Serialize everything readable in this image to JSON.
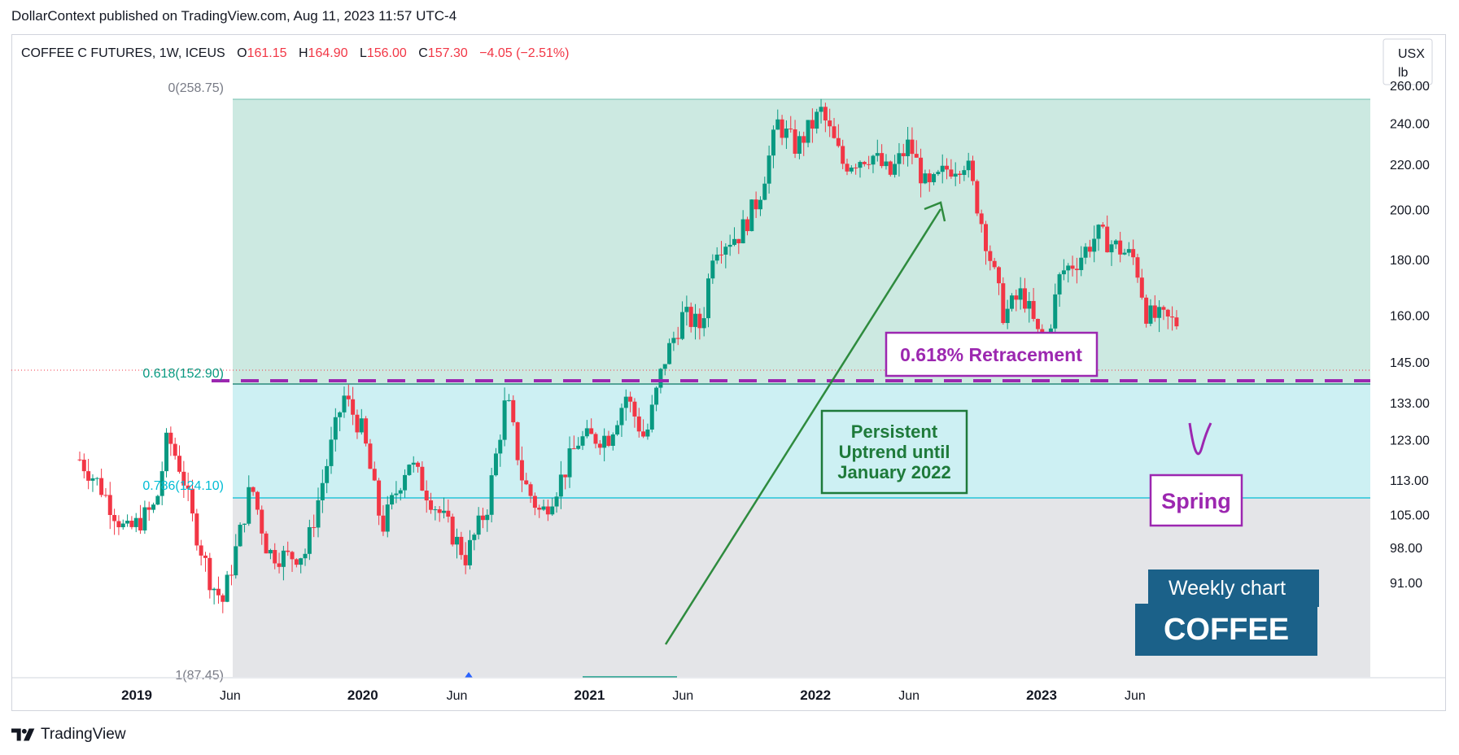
{
  "header": {
    "publisher": "DollarContext published on TradingView.com, Aug 11, 2023 11:57 UTC-4"
  },
  "legend": {
    "symbol": "COFFEE C FUTURES, 1W, ICEUS",
    "open_label": "O",
    "open": "161.15",
    "high_label": "H",
    "high": "164.90",
    "low_label": "L",
    "low": "156.00",
    "close_label": "C",
    "close": "157.30",
    "change": "−4.05 (−2.51%)"
  },
  "unit_box": {
    "currency": "USX",
    "unit": "lb"
  },
  "fib_labels": {
    "level0": "0(258.75)",
    "level618": "0.618(152.90)",
    "level786": "0.786(124.10)",
    "level1": "1(87.45)"
  },
  "annotations": {
    "retracement": "0.618% Retracement",
    "uptrend_line1": "Persistent",
    "uptrend_line2": "Uptrend until",
    "uptrend_line3": "January 2022",
    "spring": "Spring"
  },
  "badge": {
    "line1": "Weekly chart",
    "line2": "COFFEE"
  },
  "footer": {
    "brand": "TradingView"
  },
  "colors": {
    "up": "#089981",
    "down": "#f23645",
    "zone_top": "#cce9e1",
    "zone_mid": "#cdf0f3",
    "zone_bottom": "#e4e5e8",
    "purple": "#9c27b0",
    "green_annot": "#2e7d32",
    "fib_green": "#089981",
    "fib_cyan": "#00bcd4",
    "badge_bg": "#1b6189"
  },
  "chart_data": {
    "type": "candlestick",
    "title": "COFFEE C FUTURES, 1W, ICEUS",
    "y_axis_ticks": [
      91,
      98,
      105,
      113,
      123,
      133,
      145,
      160,
      180,
      200,
      220,
      240,
      260
    ],
    "y_axis_labels": [
      "91.00",
      "98.00",
      "105.00",
      "113.00",
      "123.00",
      "133.00",
      "145.00",
      "160.00",
      "180.00",
      "200.00",
      "220.00",
      "240.00",
      "260.00"
    ],
    "y_scale": "log",
    "x_axis_labels": [
      "2019",
      "Jun",
      "2020",
      "Jun",
      "2021",
      "Jun",
      "2022",
      "Jun",
      "2023",
      "Jun"
    ],
    "x_axis_dates": [
      "2019-01-01",
      "2019-06-01",
      "2020-01-01",
      "2020-06-01",
      "2021-01-01",
      "2021-06-01",
      "2022-01-01",
      "2022-06-01",
      "2023-01-01",
      "2023-06-01"
    ],
    "last_price": 157.3,
    "fib_levels": [
      {
        "ratio": 0,
        "price": 258.75
      },
      {
        "ratio": 0.618,
        "price": 152.9
      },
      {
        "ratio": 0.786,
        "price": 124.1
      },
      {
        "ratio": 1,
        "price": 87.45
      }
    ],
    "grid": false,
    "weekly_closes": [
      {
        "date": "2018-10-01",
        "close": 118
      },
      {
        "date": "2018-11-01",
        "close": 112
      },
      {
        "date": "2018-12-15",
        "close": 101
      },
      {
        "date": "2019-01-01",
        "close": 103
      },
      {
        "date": "2019-02-01",
        "close": 107
      },
      {
        "date": "2019-02-20",
        "close": 124
      },
      {
        "date": "2019-03-15",
        "close": 115
      },
      {
        "date": "2019-04-01",
        "close": 104
      },
      {
        "date": "2019-05-01",
        "close": 91
      },
      {
        "date": "2019-05-20",
        "close": 87.5
      },
      {
        "date": "2019-06-15",
        "close": 100
      },
      {
        "date": "2019-07-05",
        "close": 112
      },
      {
        "date": "2019-08-01",
        "close": 97
      },
      {
        "date": "2019-09-01",
        "close": 96
      },
      {
        "date": "2019-10-01",
        "close": 97
      },
      {
        "date": "2019-11-01",
        "close": 115
      },
      {
        "date": "2019-12-01",
        "close": 135
      },
      {
        "date": "2020-01-01",
        "close": 125
      },
      {
        "date": "2020-02-01",
        "close": 102
      },
      {
        "date": "2020-03-15",
        "close": 118
      },
      {
        "date": "2020-04-10",
        "close": 111
      },
      {
        "date": "2020-05-15",
        "close": 103
      },
      {
        "date": "2020-06-15",
        "close": 96
      },
      {
        "date": "2020-07-20",
        "close": 107
      },
      {
        "date": "2020-08-20",
        "close": 135
      },
      {
        "date": "2020-09-15",
        "close": 113
      },
      {
        "date": "2020-10-15",
        "close": 105
      },
      {
        "date": "2020-11-15",
        "close": 113
      },
      {
        "date": "2020-12-15",
        "close": 123
      },
      {
        "date": "2021-02-01",
        "close": 124
      },
      {
        "date": "2021-03-01",
        "close": 135
      },
      {
        "date": "2021-04-01",
        "close": 123
      },
      {
        "date": "2021-05-01",
        "close": 145
      },
      {
        "date": "2021-06-01",
        "close": 160
      },
      {
        "date": "2021-07-01",
        "close": 156
      },
      {
        "date": "2021-07-20",
        "close": 185
      },
      {
        "date": "2021-09-01",
        "close": 190
      },
      {
        "date": "2021-10-01",
        "close": 205
      },
      {
        "date": "2021-11-01",
        "close": 240
      },
      {
        "date": "2021-12-01",
        "close": 228
      },
      {
        "date": "2022-01-10",
        "close": 246
      },
      {
        "date": "2022-02-15",
        "close": 220
      },
      {
        "date": "2022-04-01",
        "close": 225
      },
      {
        "date": "2022-05-01",
        "close": 215
      },
      {
        "date": "2022-06-01",
        "close": 230
      },
      {
        "date": "2022-07-01",
        "close": 208
      },
      {
        "date": "2022-08-01",
        "close": 218
      },
      {
        "date": "2022-09-01",
        "close": 222
      },
      {
        "date": "2022-10-01",
        "close": 190
      },
      {
        "date": "2022-11-01",
        "close": 160
      },
      {
        "date": "2022-12-01",
        "close": 168
      },
      {
        "date": "2023-01-05",
        "close": 148
      },
      {
        "date": "2023-02-01",
        "close": 175
      },
      {
        "date": "2023-03-01",
        "close": 180
      },
      {
        "date": "2023-04-01",
        "close": 190
      },
      {
        "date": "2023-05-01",
        "close": 185
      },
      {
        "date": "2023-06-01",
        "close": 180
      },
      {
        "date": "2023-06-20",
        "close": 160
      },
      {
        "date": "2023-08-11",
        "close": 157.3
      }
    ]
  }
}
